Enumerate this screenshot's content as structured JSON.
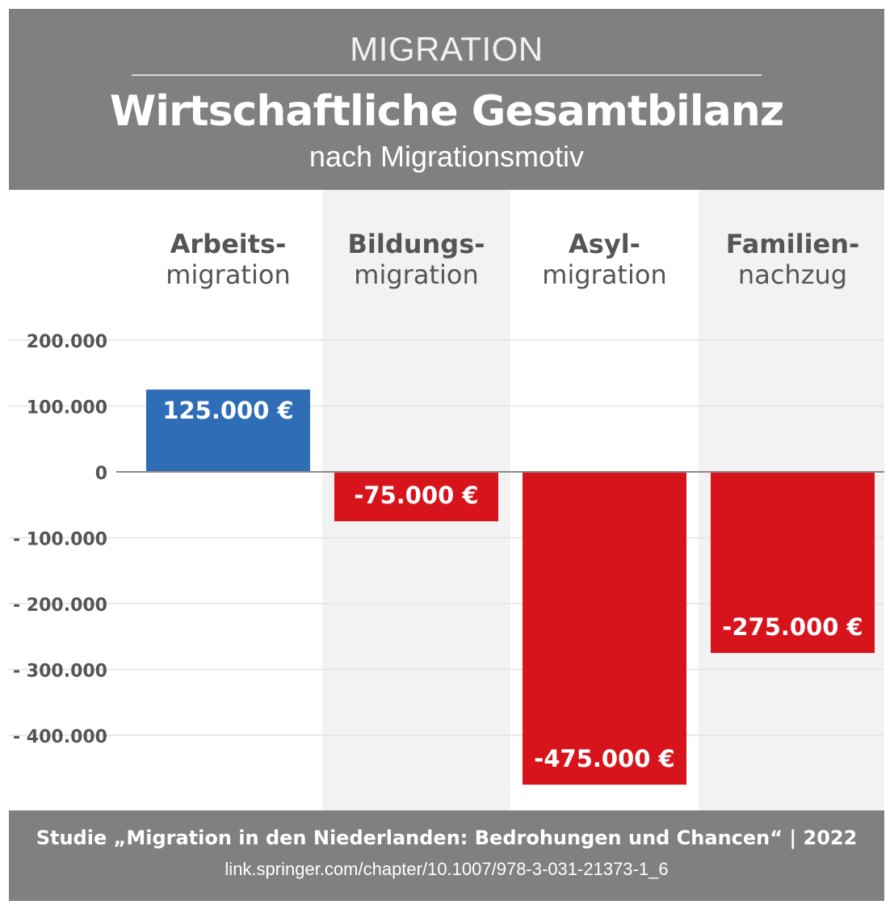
{
  "header": {
    "kicker": "MIGRATION",
    "title": "Wirtschaftliche Gesamtbilanz",
    "subtitle": "nach Migrationsmotiv"
  },
  "footer": {
    "source": "Studie „Migration in den Niederlanden: Bedrohungen und Chancen“ | 2022",
    "link": "link.springer.com/chapter/10.1007/978-3-031-21373-1_6"
  },
  "colors": {
    "header_bg": "#7f8082",
    "positive": "#2f6db7",
    "negative": "#d7141c",
    "column_shade": "#f2f2f2",
    "text_dark": "#555555"
  },
  "chart_data": {
    "type": "bar",
    "title": "Wirtschaftliche Gesamtbilanz",
    "subtitle": "nach Migrationsmotiv",
    "categories": [
      {
        "line1": "Arbeits-",
        "line2": "migration"
      },
      {
        "line1": "Bildungs-",
        "line2": "migration"
      },
      {
        "line1": "Asyl-",
        "line2": "migration"
      },
      {
        "line1": "Familien-",
        "line2": "nachzug"
      }
    ],
    "values": [
      125000,
      -75000,
      -475000,
      -275000
    ],
    "value_labels": [
      "125.000 €",
      "-75.000 €",
      "-475.000 €",
      "-275.000 €"
    ],
    "yticks": [
      200000,
      100000,
      0,
      -100000,
      -200000,
      -300000,
      -400000
    ],
    "ytick_labels": [
      "200.000",
      "100.000",
      "0",
      "- 100.000",
      "- 200.000",
      "- 300.000",
      "- 400.000"
    ],
    "ylim": [
      -475000,
      200000
    ],
    "xlabel": "",
    "ylabel": "",
    "unit": "€"
  }
}
